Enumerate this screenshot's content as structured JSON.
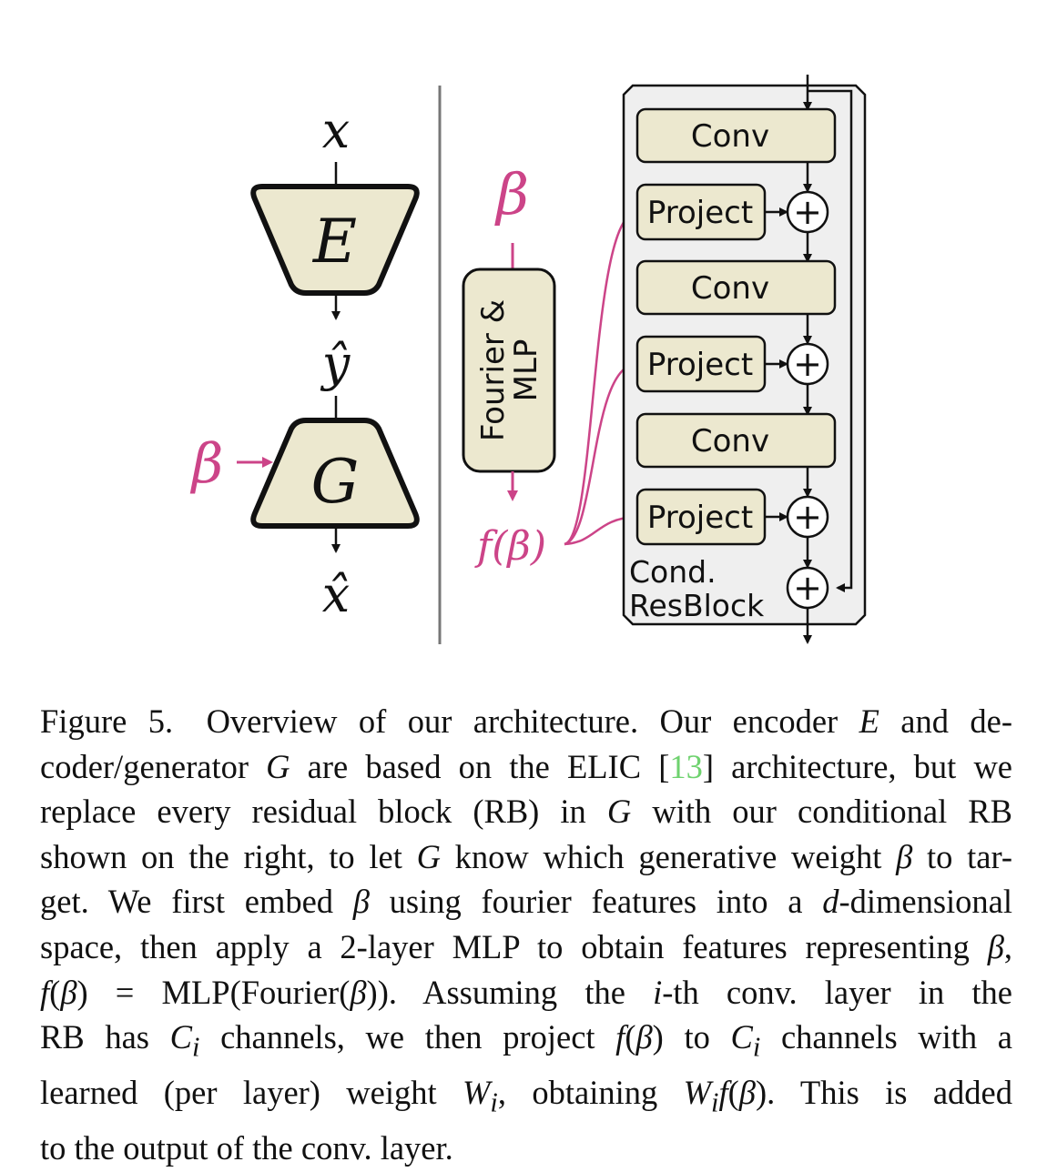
{
  "encoder_panel": {
    "input_label": "x",
    "encoder_label": "E",
    "latent_label": "ŷ",
    "beta_label": "β",
    "generator_label": "G",
    "output_label": "x̂"
  },
  "conditioning_panel": {
    "beta_label": "β",
    "fourier_line1": "Fourier &",
    "fourier_line2": "MLP",
    "output_label": "f(β)"
  },
  "resblock": {
    "conv_labels": [
      "Conv",
      "Conv",
      "Conv"
    ],
    "project_labels": [
      "Project",
      "Project",
      "Project"
    ],
    "plus_symbol": "+",
    "block_label_line1": "Cond.",
    "block_label_line2": "ResBlock"
  },
  "colors": {
    "box_fill": "#ece8cf",
    "block_bg": "#efefef",
    "accent": "#cc4488",
    "citation": "#6fd26f"
  },
  "caption": {
    "lines": [
      [
        "Figure 5. Overview of our architecture.  Our encoder ",
        "E",
        " and de-"
      ],
      [
        "coder/generator ",
        "G",
        " are based on the ELIC [",
        "13",
        "] architecture, but we"
      ],
      [
        "replace every residual block (RB) in ",
        "G",
        " with our conditional RB"
      ],
      [
        "shown on the right, to let ",
        "G",
        " know which generative weight ",
        "β",
        " to tar-"
      ],
      [
        "get. We first embed ",
        "β",
        " using fourier features into a ",
        "d",
        "-dimensional"
      ],
      [
        "space, then apply a 2-layer MLP to obtain features representing ",
        "β",
        ","
      ],
      [
        "f",
        "(",
        "β",
        ") = MLP(Fourier(",
        "β",
        ")).  Assuming the ",
        "i",
        "-th conv. layer in the"
      ],
      [
        "RB has ",
        "C",
        "i",
        " channels, we then project ",
        "f",
        "(",
        "β",
        ") to ",
        "C",
        "i",
        " channels with a"
      ],
      [
        "learned (per layer) weight ",
        "W",
        "i",
        ", obtaining ",
        "W",
        "i",
        "f",
        "(",
        "β",
        ").  This is added"
      ],
      [
        "to the output of the conv. layer."
      ]
    ]
  }
}
